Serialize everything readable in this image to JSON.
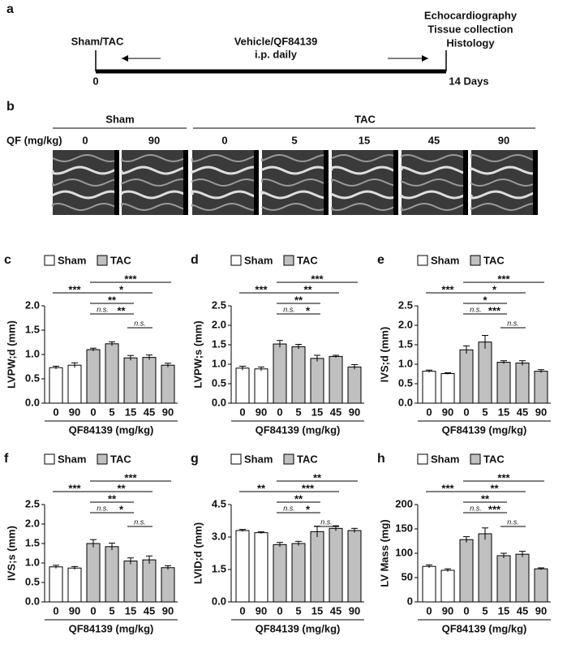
{
  "timeline": {
    "panel": "a",
    "start_event": "Sham/TAC",
    "treatment": [
      "Vehicle/QF84139",
      "i.p. daily"
    ],
    "endpoints": [
      "Echocardiography",
      "Tissue collection",
      "Histology"
    ],
    "start": "0",
    "end": "14 Days"
  },
  "echo": {
    "panel": "b",
    "groups": [
      "Sham",
      "TAC"
    ],
    "dose_label": "QF (mg/kg)",
    "doses": [
      "0",
      "90",
      "0",
      "5",
      "15",
      "45",
      "90"
    ]
  },
  "chart_data": [
    {
      "type": "bar",
      "panel": "c",
      "ylabel": "LVPW;d (mm)",
      "xlabel": "QF84139 (mg/kg)",
      "categories": [
        "0",
        "90",
        "0",
        "5",
        "15",
        "45",
        "90"
      ],
      "series": [
        {
          "name": "Sham",
          "color": "#ffffff",
          "values": [
            0.73,
            0.78,
            null,
            null,
            null,
            null,
            null
          ],
          "errors": [
            0.03,
            0.05,
            null,
            null,
            null,
            null,
            null
          ]
        },
        {
          "name": "TAC",
          "color": "#c0c0c0",
          "values": [
            null,
            null,
            1.1,
            1.22,
            0.93,
            0.94,
            0.78
          ],
          "errors": [
            null,
            null,
            0.03,
            0.04,
            0.05,
            0.05,
            0.04
          ]
        }
      ],
      "ylim": [
        0,
        2.0
      ],
      "yticks": [
        {
          "value": 0,
          "label": "0.0"
        },
        0.5,
        {
          "value": 1,
          "label": "1.0"
        },
        1.5,
        {
          "value": 2,
          "label": "2.0"
        }
      ],
      "comparisons": [
        {
          "label": "***",
          "between": [
            0,
            2
          ]
        },
        {
          "label": "***",
          "between": [
            2,
            6
          ]
        },
        {
          "label": "*",
          "between": [
            2,
            5
          ]
        },
        {
          "label": "**",
          "between": [
            2,
            4
          ]
        },
        {
          "label": "n.s.",
          "between": [
            2,
            3
          ]
        },
        {
          "label": "**",
          "between": [
            3,
            4
          ]
        },
        {
          "label": "n.s.",
          "between": [
            4,
            5
          ]
        }
      ]
    },
    {
      "type": "bar",
      "panel": "d",
      "ylabel": "LVPW;s (mm)",
      "xlabel": "QF84139 (mg/kg)",
      "categories": [
        "0",
        "90",
        "0",
        "5",
        "15",
        "45",
        "90"
      ],
      "series": [
        {
          "name": "Sham",
          "color": "#ffffff",
          "values": [
            0.9,
            0.88,
            null,
            null,
            null,
            null,
            null
          ],
          "errors": [
            0.05,
            0.05,
            null,
            null,
            null,
            null,
            null
          ]
        },
        {
          "name": "TAC",
          "color": "#c0c0c0",
          "values": [
            null,
            null,
            1.52,
            1.45,
            1.15,
            1.2,
            0.93
          ],
          "errors": [
            null,
            null,
            0.09,
            0.06,
            0.08,
            0.03,
            0.06
          ]
        }
      ],
      "ylim": [
        0,
        2.5
      ],
      "yticks": [
        {
          "value": 0,
          "label": "0.0"
        },
        0.5,
        {
          "value": 1,
          "label": "1.0"
        },
        1.5,
        {
          "value": 2,
          "label": "2.0"
        },
        2.5
      ],
      "comparisons": [
        {
          "label": "***",
          "between": [
            0,
            2
          ]
        },
        {
          "label": "***",
          "between": [
            2,
            6
          ]
        },
        {
          "label": "**",
          "between": [
            2,
            5
          ]
        },
        {
          "label": "**",
          "between": [
            2,
            4
          ]
        },
        {
          "label": "n.s.",
          "between": [
            2,
            3
          ]
        },
        {
          "label": "*",
          "between": [
            3,
            4
          ]
        }
      ]
    },
    {
      "type": "bar",
      "panel": "e",
      "ylabel": "IVS;d (mm)",
      "xlabel": "QF84139 (mg/kg)",
      "categories": [
        "0",
        "90",
        "0",
        "5",
        "15",
        "45",
        "90"
      ],
      "series": [
        {
          "name": "Sham",
          "color": "#ffffff",
          "values": [
            0.82,
            0.76,
            null,
            null,
            null,
            null,
            null
          ],
          "errors": [
            0.03,
            0.02,
            null,
            null,
            null,
            null,
            null
          ]
        },
        {
          "name": "TAC",
          "color": "#c0c0c0",
          "values": [
            null,
            null,
            1.37,
            1.57,
            1.05,
            1.03,
            0.82
          ],
          "errors": [
            null,
            null,
            0.1,
            0.17,
            0.04,
            0.06,
            0.04
          ]
        }
      ],
      "ylim": [
        0,
        2.5
      ],
      "yticks": [
        {
          "value": 0,
          "label": "0.0"
        },
        0.5,
        {
          "value": 1,
          "label": "1.0"
        },
        1.5,
        {
          "value": 2,
          "label": "2.0"
        },
        2.5
      ],
      "comparisons": [
        {
          "label": "***",
          "between": [
            0,
            2
          ]
        },
        {
          "label": "***",
          "between": [
            2,
            6
          ]
        },
        {
          "label": "*",
          "between": [
            2,
            5
          ]
        },
        {
          "label": "*",
          "between": [
            2,
            4
          ]
        },
        {
          "label": "n.s.",
          "between": [
            2,
            3
          ]
        },
        {
          "label": "***",
          "between": [
            3,
            4
          ]
        },
        {
          "label": "n.s.",
          "between": [
            4,
            5
          ]
        }
      ]
    },
    {
      "type": "bar",
      "panel": "f",
      "ylabel": "IVS;s (mm)",
      "xlabel": "QF84139 (mg/kg)",
      "categories": [
        "0",
        "90",
        "0",
        "5",
        "15",
        "45",
        "90"
      ],
      "series": [
        {
          "name": "Sham",
          "color": "#ffffff",
          "values": [
            0.9,
            0.87,
            null,
            null,
            null,
            null,
            null
          ],
          "errors": [
            0.04,
            0.04,
            null,
            null,
            null,
            null,
            null
          ]
        },
        {
          "name": "TAC",
          "color": "#c0c0c0",
          "values": [
            null,
            null,
            1.5,
            1.42,
            1.05,
            1.08,
            0.88
          ],
          "errors": [
            null,
            null,
            0.1,
            0.09,
            0.08,
            0.1,
            0.05
          ]
        }
      ],
      "ylim": [
        0,
        2.5
      ],
      "yticks": [
        {
          "value": 0,
          "label": "0.0"
        },
        0.5,
        {
          "value": 1,
          "label": "1.0"
        },
        1.5,
        {
          "value": 2,
          "label": "2.0"
        },
        2.5
      ],
      "comparisons": [
        {
          "label": "***",
          "between": [
            0,
            2
          ]
        },
        {
          "label": "***",
          "between": [
            2,
            6
          ]
        },
        {
          "label": "**",
          "between": [
            2,
            5
          ]
        },
        {
          "label": "**",
          "between": [
            2,
            4
          ]
        },
        {
          "label": "n.s.",
          "between": [
            2,
            3
          ]
        },
        {
          "label": "*",
          "between": [
            3,
            4
          ]
        },
        {
          "label": "n.s.",
          "between": [
            4,
            5
          ]
        }
      ]
    },
    {
      "type": "bar",
      "panel": "g",
      "ylabel": "LVID;d (mm)",
      "xlabel": "QF84139 (mg/kg)",
      "categories": [
        "0",
        "90",
        "0",
        "5",
        "15",
        "45",
        "90"
      ],
      "series": [
        {
          "name": "Sham",
          "color": "#ffffff",
          "values": [
            3.3,
            3.2,
            null,
            null,
            null,
            null,
            null
          ],
          "errors": [
            0.05,
            0.04,
            null,
            null,
            null,
            null,
            null
          ]
        },
        {
          "name": "TAC",
          "color": "#c0c0c0",
          "values": [
            null,
            null,
            2.65,
            2.7,
            3.25,
            3.4,
            3.3
          ],
          "errors": [
            null,
            null,
            0.1,
            0.1,
            0.25,
            0.12,
            0.1
          ]
        }
      ],
      "ylim": [
        0,
        4.5
      ],
      "yticks": [
        {
          "value": 0,
          "label": "0.0"
        },
        1.5,
        {
          "value": 3,
          "label": "3.0"
        },
        4.5
      ],
      "comparisons": [
        {
          "label": "**",
          "between": [
            0,
            2
          ]
        },
        {
          "label": "**",
          "between": [
            2,
            6
          ]
        },
        {
          "label": "***",
          "between": [
            2,
            5
          ]
        },
        {
          "label": "**",
          "between": [
            2,
            4
          ]
        },
        {
          "label": "n.s.",
          "between": [
            2,
            3
          ]
        },
        {
          "label": "*",
          "between": [
            3,
            4
          ]
        },
        {
          "label": "n.s.",
          "between": [
            4,
            5
          ]
        }
      ]
    },
    {
      "type": "bar",
      "panel": "h",
      "ylabel": "LV Mass (mg)",
      "xlabel": "QF84139 (mg/kg)",
      "categories": [
        "0",
        "90",
        "0",
        "5",
        "15",
        "45",
        "90"
      ],
      "series": [
        {
          "name": "Sham",
          "color": "#ffffff",
          "values": [
            73,
            65,
            null,
            null,
            null,
            null,
            null
          ],
          "errors": [
            3,
            3,
            null,
            null,
            null,
            null,
            null
          ]
        },
        {
          "name": "TAC",
          "color": "#c0c0c0",
          "values": [
            null,
            null,
            128,
            140,
            95,
            98,
            68
          ],
          "errors": [
            null,
            null,
            6,
            12,
            5,
            6,
            2
          ]
        }
      ],
      "ylim": [
        0,
        200
      ],
      "yticks": [
        0,
        50,
        100,
        150,
        200
      ],
      "comparisons": [
        {
          "label": "***",
          "between": [
            0,
            2
          ]
        },
        {
          "label": "***",
          "between": [
            2,
            6
          ]
        },
        {
          "label": "**",
          "between": [
            2,
            5
          ]
        },
        {
          "label": "**",
          "between": [
            2,
            4
          ]
        },
        {
          "label": "n.s.",
          "between": [
            2,
            3
          ]
        },
        {
          "label": "***",
          "between": [
            3,
            4
          ]
        },
        {
          "label": "n.s.",
          "between": [
            4,
            5
          ]
        }
      ]
    }
  ]
}
